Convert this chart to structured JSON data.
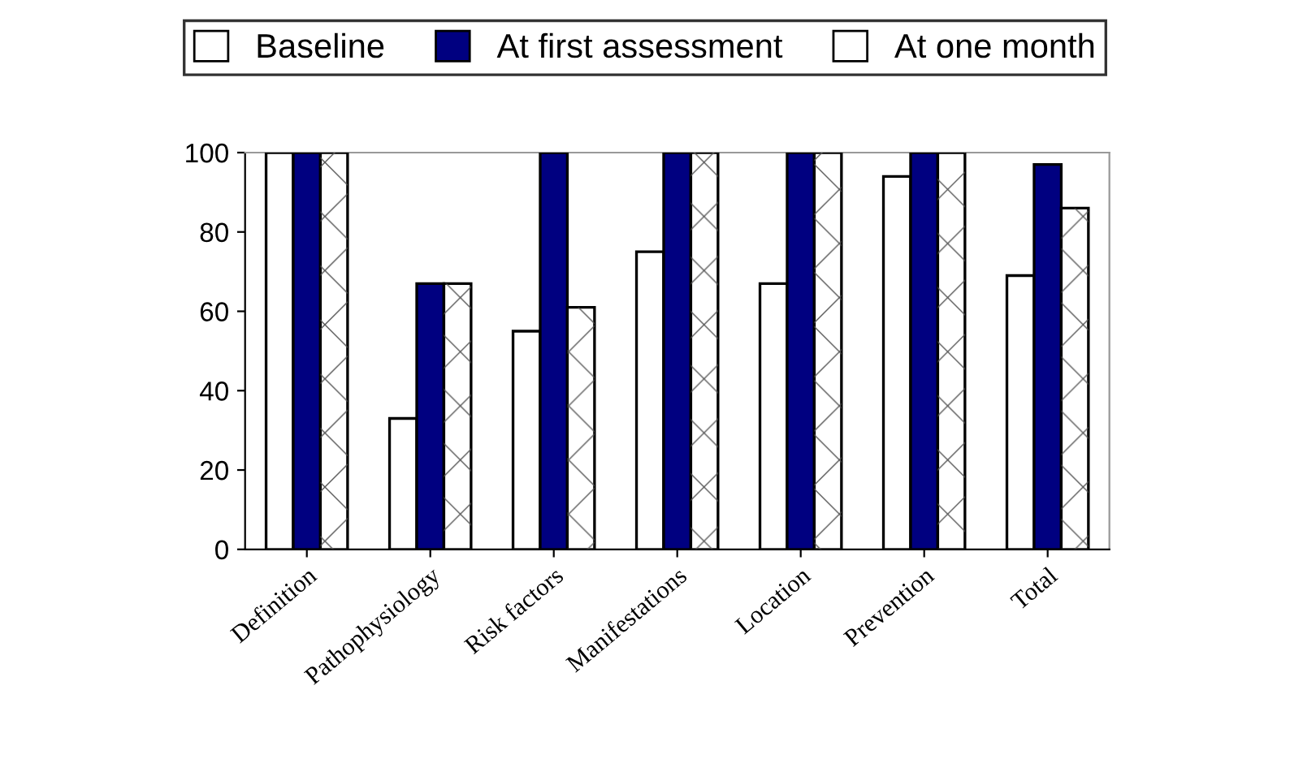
{
  "chart_data": {
    "type": "bar",
    "categories": [
      "Definition",
      "Pathophysiology",
      "Risk factors",
      "Manifestations",
      "Location",
      "Prevention",
      "Total"
    ],
    "series": [
      {
        "name": "Baseline",
        "color": "#ffffff",
        "values": [
          100,
          33,
          55,
          75,
          67,
          94,
          69
        ]
      },
      {
        "name": "At first assessment",
        "color": "#000080",
        "values": [
          100,
          67,
          100,
          100,
          100,
          100,
          97
        ]
      },
      {
        "name": "At one month",
        "color": "#ffffff",
        "values": [
          100,
          67,
          61,
          100,
          100,
          100,
          86
        ]
      }
    ],
    "ylim": [
      0,
      100
    ],
    "yticks": [
      0,
      20,
      40,
      60,
      80,
      100
    ],
    "grid": false,
    "legend": "top"
  }
}
